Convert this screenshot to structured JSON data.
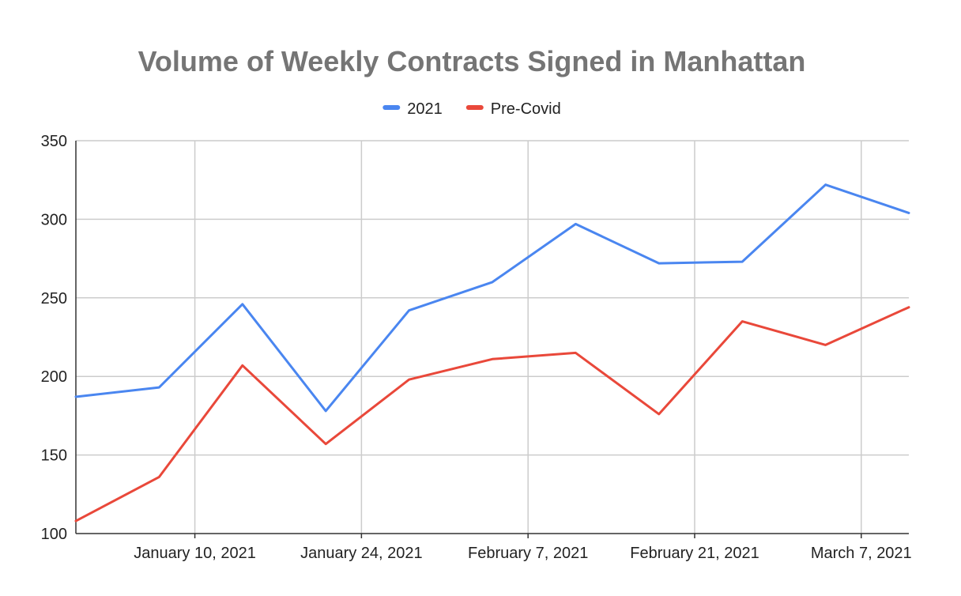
{
  "chart_data": {
    "type": "line",
    "title": "Volume of Weekly Contracts Signed in Manhattan",
    "xlabel": "",
    "ylabel": "",
    "x": [
      "2020-12-31",
      "2021-01-07",
      "2021-01-14",
      "2021-01-21",
      "2021-01-28",
      "2021-02-04",
      "2021-02-11",
      "2021-02-18",
      "2021-02-25",
      "2021-03-04",
      "2021-03-11"
    ],
    "xlim": [
      "2020-12-31",
      "2021-03-11"
    ],
    "x_ticks": [
      {
        "label": "January 10, 2021",
        "date": "2021-01-10"
      },
      {
        "label": "January 24, 2021",
        "date": "2021-01-24"
      },
      {
        "label": "February 7, 2021",
        "date": "2021-02-07"
      },
      {
        "label": "February 21, 2021",
        "date": "2021-02-21"
      },
      {
        "label": "March 7, 2021",
        "date": "2021-03-07"
      }
    ],
    "ylim": [
      100,
      350
    ],
    "y_ticks": [
      100,
      150,
      200,
      250,
      300,
      350
    ],
    "grid": true,
    "legend": "top",
    "series": [
      {
        "name": "2021",
        "color": "#4a86f0",
        "values": [
          187,
          193,
          246,
          178,
          242,
          260,
          297,
          272,
          273,
          322,
          304
        ]
      },
      {
        "name": "Pre-Covid",
        "color": "#e9483a",
        "values": [
          108,
          136,
          207,
          157,
          198,
          211,
          215,
          176,
          235,
          220,
          244
        ]
      }
    ]
  }
}
